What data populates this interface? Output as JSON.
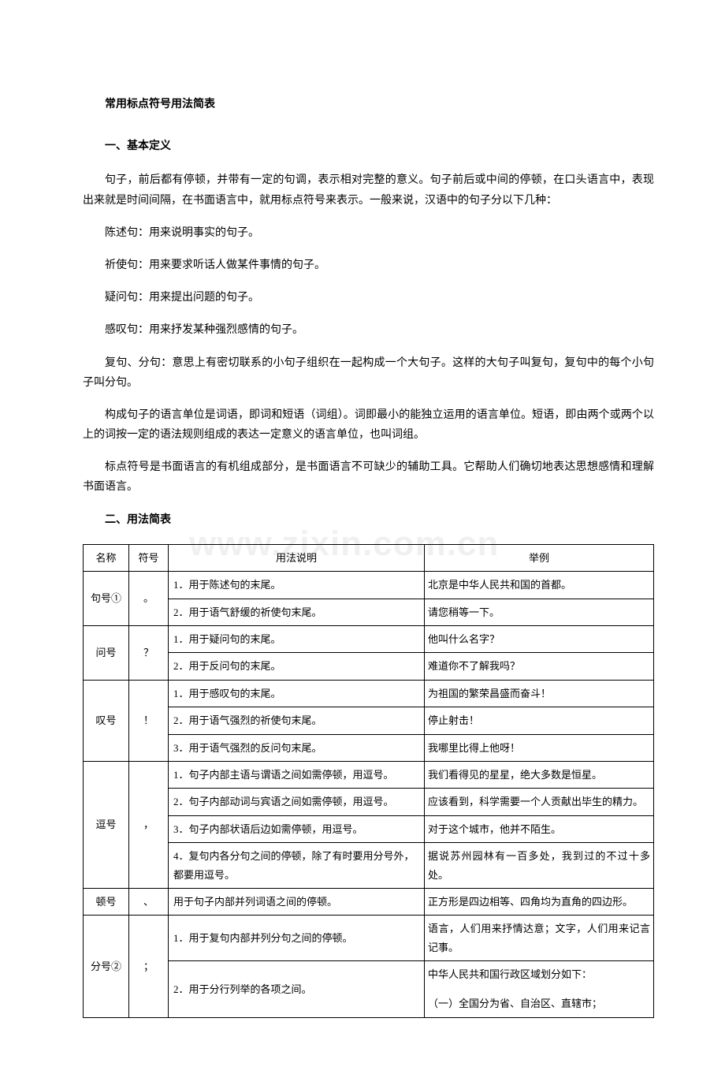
{
  "title": "常用标点符号用法简表",
  "section1": {
    "heading": "一、基本定义",
    "paragraphs": [
      "句子，前后都有停顿，并带有一定的句调，表示相对完整的意义。句子前后或中间的停顿，在口头语言中，表现出来就是时间间隔，在书面语言中，就用标点符号来表示。一般来说，汉语中的句子分以下几种：",
      "陈述句：用来说明事实的句子。",
      "祈使句：用来要求听话人做某件事情的句子。",
      "疑问句：用来提出问题的句子。",
      "感叹句：用来抒发某种强烈感情的句子。",
      "复句、分句：意思上有密切联系的小句子组织在一起构成一个大句子。这样的大句子叫复句，复句中的每个小句子叫分句。",
      "构成句子的语言单位是词语，即词和短语（词组）。词即最小的能独立运用的语言单位。短语，即由两个或两个以上的词按一定的语法规则组成的表达一定意义的语言单位，也叫词组。",
      "标点符号是书面语言的有机组成部分，是书面语言不可缺少的辅助工具。它帮助人们确切地表达思想感情和理解书面语言。"
    ]
  },
  "section2": {
    "heading": "二、用法简表",
    "table": {
      "headers": {
        "name": "名称",
        "symbol": "符号",
        "usage": "用法说明",
        "example": "举例"
      },
      "rows": [
        {
          "name": "句号①",
          "symbol": "。",
          "usages": [
            {
              "u": "1．用于陈述句的末尾。",
              "e": "北京是中华人民共和国的首都。"
            },
            {
              "u": "2．用于语气舒缓的祈使句末尾。",
              "e": "请您稍等一下。"
            }
          ]
        },
        {
          "name": "问号",
          "symbol": "？",
          "usages": [
            {
              "u": "1．用于疑问句的末尾。",
              "e": "他叫什么名字？"
            },
            {
              "u": "2．用于反问句的末尾。",
              "e": "难道你不了解我吗？"
            }
          ]
        },
        {
          "name": "叹号",
          "symbol": "！",
          "usages": [
            {
              "u": "1．用于感叹句的末尾。",
              "e": "为祖国的繁荣昌盛而奋斗！"
            },
            {
              "u": "2．用于语气强烈的祈使句末尾。",
              "e": "停止射击！"
            },
            {
              "u": "3．用于语气强烈的反问句末尾。",
              "e": "我哪里比得上他呀！"
            }
          ]
        },
        {
          "name": "逗号",
          "symbol": "，",
          "usages": [
            {
              "u": "1．句子内部主语与谓语之间如需停顿，用逗号。",
              "e": "我们看得见的星星，绝大多数是恒星。"
            },
            {
              "u": "2．句子内部动词与宾语之间如需停顿，用逗号。",
              "e": "应该看到，科学需要一个人贡献出毕生的精力。"
            },
            {
              "u": "3．句子内部状语后边如需停顿，用逗号。",
              "e": "对于这个城市，他并不陌生。"
            },
            {
              "u": "4．复句内各分句之间的停顿，除了有时要用分号外，都要用逗号。",
              "e": "据说苏州园林有一百多处，我到过的不过十多处。"
            }
          ]
        },
        {
          "name": "顿号",
          "symbol": "、",
          "usages": [
            {
              "u": "用于句子内部并列词语之间的停顿。",
              "e": "正方形是四边相等、四角均为直角的四边形。"
            }
          ]
        },
        {
          "name": "分号②",
          "symbol": "；",
          "usages": [
            {
              "u": "1．用于复句内部并列分句之间的停顿。",
              "e": "语言，人们用来抒情达意；文字，人们用来记言记事。"
            },
            {
              "u": "2．用于分行列举的各项之间。",
              "e": "中华人民共和国行政区域划分如下：\n（一）全国分为省、自治区、直辖市；"
            }
          ]
        }
      ]
    }
  },
  "watermark": "www.zixin.com.cn"
}
